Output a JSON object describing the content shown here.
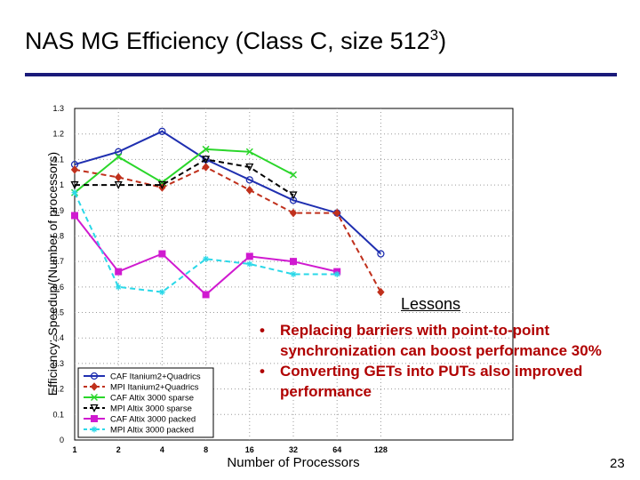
{
  "slide": {
    "title_main": "NAS MG Efficiency (Class C, size 512",
    "title_sup": "3",
    "title_end": ")",
    "lessons_title": "Lessons",
    "lessons": [
      "Replacing barriers with point-to-point synchronization can boost performance 30%",
      "Converting GETs into PUTs also improved performance"
    ],
    "bullet_char": "•",
    "page_number": "23"
  },
  "chart_data": {
    "type": "line",
    "title": "",
    "xlabel": "Number of Processors",
    "ylabel": "Efficiency: Speedup/(Number of processors)",
    "categories": [
      "1",
      "2",
      "4",
      "8",
      "16",
      "32",
      "64",
      "128"
    ],
    "ylim": [
      0,
      1.3
    ],
    "yticks": [
      "0",
      "0.1",
      "0.2",
      "0.3",
      "0.4",
      "0.5",
      "0.6",
      "0.7",
      "0.8",
      "0.9",
      "1",
      "1.1",
      "1.2",
      "1.3"
    ],
    "grid": true,
    "legend_position": "bottom-left",
    "series": [
      {
        "name": "CAF Itanium2+Quadrics",
        "color": "#1f2fb0",
        "dash": "solid",
        "marker": "circle",
        "values": [
          1.08,
          1.13,
          1.21,
          1.1,
          1.02,
          0.94,
          0.89,
          0.73
        ]
      },
      {
        "name": "MPI Itanium2+Quadrics",
        "color": "#c0301c",
        "dash": "dashed",
        "marker": "diamond",
        "values": [
          1.06,
          1.03,
          0.99,
          1.07,
          0.98,
          0.89,
          0.89,
          0.58
        ]
      },
      {
        "name": "CAF Altix 3000 sparse",
        "color": "#2ad62a",
        "dash": "solid",
        "marker": "x",
        "values": [
          0.97,
          1.11,
          1.01,
          1.14,
          1.13,
          1.04,
          null,
          null
        ]
      },
      {
        "name": "MPI Altix 3000 sparse",
        "color": "#000000",
        "dash": "dashed",
        "marker": "triangle-down",
        "values": [
          1.0,
          1.0,
          1.0,
          1.1,
          1.07,
          0.96,
          null,
          null
        ]
      },
      {
        "name": "CAF Altix 3000 packed",
        "color": "#d01ad0",
        "dash": "solid",
        "marker": "square",
        "values": [
          0.88,
          0.66,
          0.73,
          0.57,
          0.72,
          0.7,
          0.66,
          null
        ]
      },
      {
        "name": "MPI Altix 3000 packed",
        "color": "#2ad8e8",
        "dash": "dashed",
        "marker": "star",
        "values": [
          0.97,
          0.6,
          0.58,
          0.71,
          0.69,
          0.65,
          0.65,
          null
        ]
      }
    ]
  }
}
